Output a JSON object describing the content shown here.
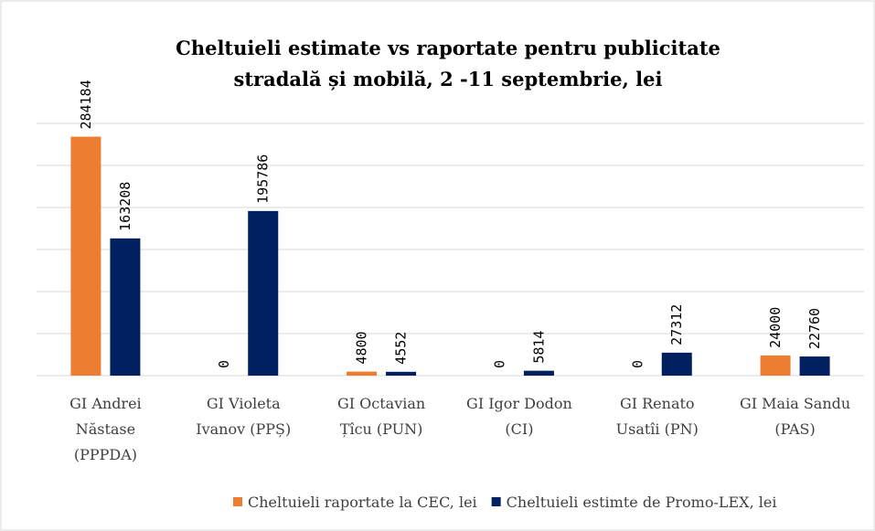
{
  "chart_data": {
    "type": "bar",
    "title": [
      "Cheltuieli estimate vs raportate pentru publicitate",
      "stradală și mobilă, 2 -11 septembrie, lei"
    ],
    "categories": [
      [
        "GI Andrei",
        "Năstase",
        "(PPPDA)"
      ],
      [
        "GI Violeta",
        "Ivanov (PPȘ)"
      ],
      [
        "GI Octavian",
        "Țîcu (PUN)"
      ],
      [
        "GI Igor Dodon",
        "(CI)"
      ],
      [
        "GI Renato",
        "Usatîi (PN)"
      ],
      [
        "GI Maia Sandu",
        "(PAS)"
      ]
    ],
    "series": [
      {
        "name": "Cheltuieli raportate la CEC, lei",
        "color": "#ed7d31",
        "values": [
          284184,
          0,
          4800,
          0,
          0,
          24000
        ]
      },
      {
        "name": "Cheltuieli estimte de Promo-LEX, lei",
        "color": "#002060",
        "values": [
          163208,
          195786,
          4552,
          5814,
          27312,
          22760
        ]
      }
    ],
    "ylim": [
      0,
      300000
    ],
    "yticks": [
      0,
      50000,
      100000,
      150000,
      200000,
      250000,
      300000
    ],
    "grid": true,
    "legend": "bottom"
  }
}
